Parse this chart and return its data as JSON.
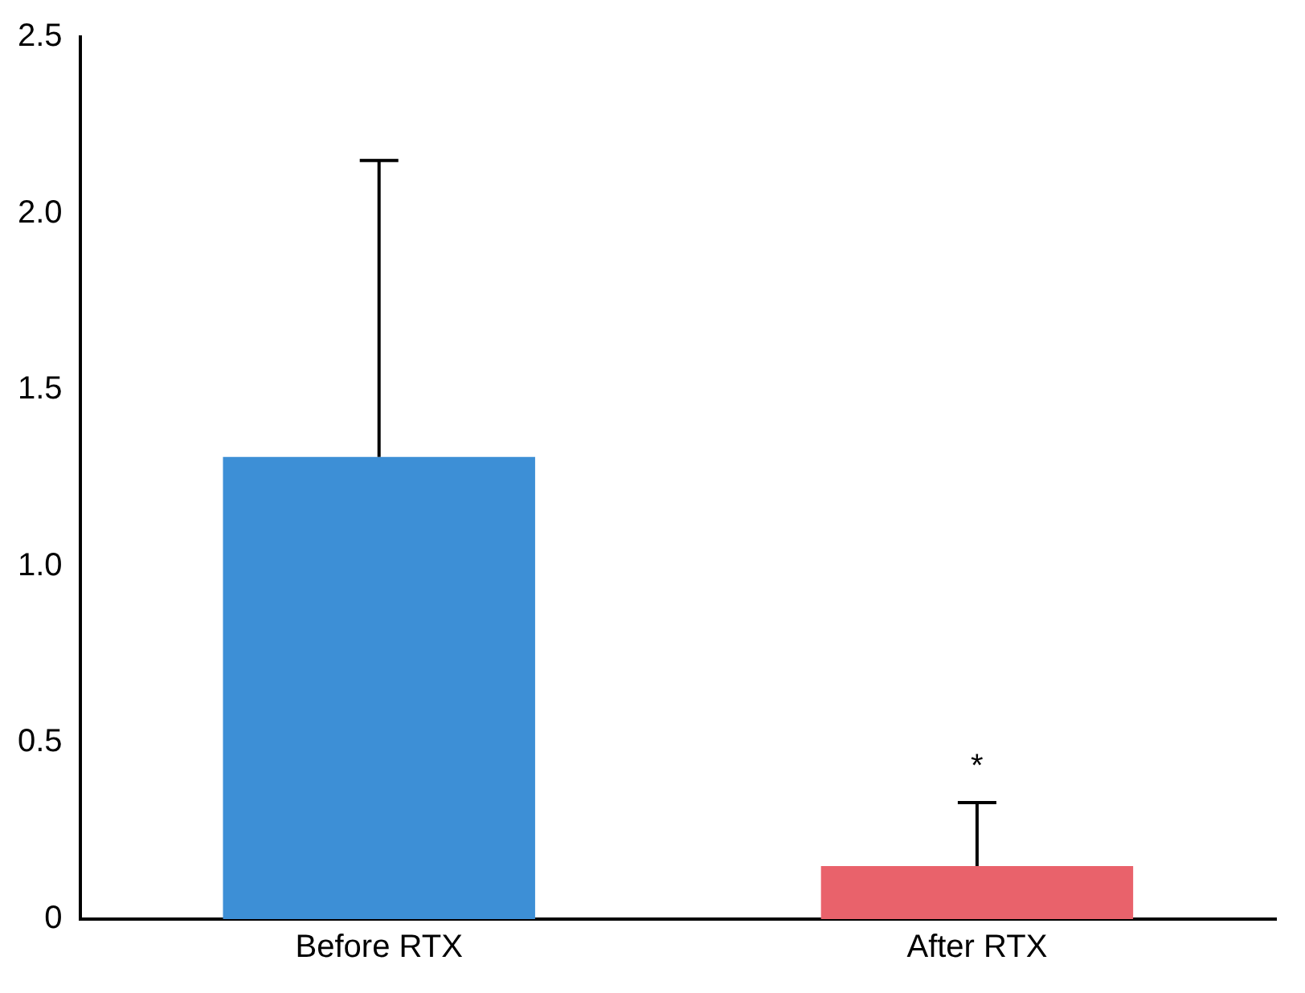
{
  "chart_data": {
    "type": "bar",
    "categories": [
      "Before RTX",
      "After RTX"
    ],
    "values": [
      1.31,
      0.15
    ],
    "colors": [
      "#3d8fd6",
      "#e9626b"
    ],
    "errors": [
      [
        1.31,
        2.15
      ],
      [
        0.15,
        0.33
      ]
    ],
    "ylim": [
      0,
      2.5
    ],
    "yticks": [
      0,
      0.5,
      {
        "value": 1,
        "label": "1.0"
      },
      1.5,
      {
        "value": 2,
        "label": "2.0"
      },
      2.5
    ],
    "annotations": [
      "*"
    ],
    "grid": false,
    "legend": false
  }
}
